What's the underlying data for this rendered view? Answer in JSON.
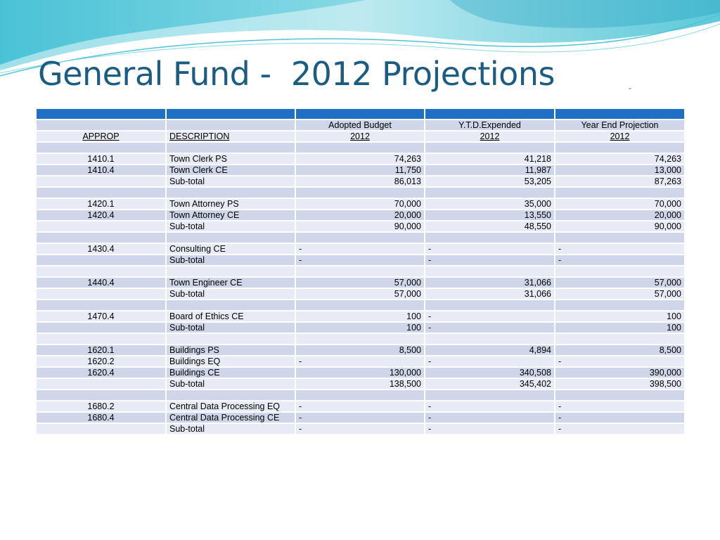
{
  "slide": {
    "title": "General Fund -  2012 Projections",
    "title_mark": "-"
  },
  "table": {
    "header_top": [
      "",
      "Adopted Budget",
      "Y.T.D.Expended",
      "Year End Projection"
    ],
    "header_cols": [
      "APPROP",
      "DESCRIPTION",
      "2012",
      "2012",
      "2012"
    ],
    "rows": [
      {
        "kind": "blank"
      },
      {
        "kind": "item",
        "approp": "1410.1",
        "desc": "Town Clerk PS",
        "budget": "74,263",
        "ytd": "41,218",
        "proj": "74,263"
      },
      {
        "kind": "item",
        "approp": "1410.4",
        "desc": "Town Clerk CE",
        "budget": "11,750",
        "ytd": "11,987",
        "proj": "13,000"
      },
      {
        "kind": "sub",
        "desc": "Sub-total",
        "budget": "86,013",
        "ytd": "53,205",
        "proj": "87,263"
      },
      {
        "kind": "blank"
      },
      {
        "kind": "item",
        "approp": "1420.1",
        "desc": "Town Attorney PS",
        "budget": "70,000",
        "ytd": "35,000",
        "proj": "70,000"
      },
      {
        "kind": "item",
        "approp": "1420.4",
        "desc": "Town Attorney CE",
        "budget": "20,000",
        "ytd": "13,550",
        "proj": "20,000"
      },
      {
        "kind": "sub",
        "desc": "Sub-total",
        "budget": "90,000",
        "ytd": "48,550",
        "proj": "90,000"
      },
      {
        "kind": "blank"
      },
      {
        "kind": "item",
        "approp": "1430.4",
        "desc": "Consulting CE",
        "budget": "-",
        "ytd": "-",
        "proj": "-"
      },
      {
        "kind": "sub",
        "desc": "Sub-total",
        "budget": "-",
        "ytd": "-",
        "proj": "-"
      },
      {
        "kind": "blank"
      },
      {
        "kind": "item",
        "approp": "1440.4",
        "desc": "Town Engineer CE",
        "budget": "57,000",
        "ytd": "31,066",
        "proj": "57,000"
      },
      {
        "kind": "sub",
        "desc": "Sub-total",
        "budget": "57,000",
        "ytd": "31,066",
        "proj": "57,000"
      },
      {
        "kind": "blank"
      },
      {
        "kind": "item",
        "approp": "1470.4",
        "desc": "Board of Ethics CE",
        "budget": "100",
        "ytd": "-",
        "proj": "100"
      },
      {
        "kind": "sub",
        "desc": "Sub-total",
        "budget": "100",
        "ytd": "-",
        "proj": "100"
      },
      {
        "kind": "blank"
      },
      {
        "kind": "item",
        "approp": "1620.1",
        "desc": "Buildings PS",
        "budget": "8,500",
        "ytd": "4,894",
        "proj": "8,500"
      },
      {
        "kind": "item",
        "approp": "1620.2",
        "desc": "Buildings EQ",
        "budget": "-",
        "ytd": "-",
        "proj": "-"
      },
      {
        "kind": "item",
        "approp": "1620.4",
        "desc": "Buildings CE",
        "budget": "130,000",
        "ytd": "340,508",
        "proj": "390,000"
      },
      {
        "kind": "sub",
        "desc": "Sub-total",
        "budget": "138,500",
        "ytd": "345,402",
        "proj": "398,500"
      },
      {
        "kind": "blank"
      },
      {
        "kind": "item",
        "approp": "1680.2",
        "desc": "Central Data Processing EQ",
        "budget": "-",
        "ytd": "-",
        "proj": "-"
      },
      {
        "kind": "item",
        "approp": "1680.4",
        "desc": "Central Data Processing CE",
        "budget": "-",
        "ytd": "-",
        "proj": "-"
      },
      {
        "kind": "sub",
        "desc": "Sub-total",
        "budget": "-",
        "ytd": "-",
        "proj": "-"
      }
    ]
  },
  "colors": {
    "title": "#1b5c82",
    "header_bar": "#1f6fc5",
    "row_light": "#e8ebf5",
    "row_dark": "#cfd6ea",
    "wave_teal": "#4fc4d6"
  }
}
